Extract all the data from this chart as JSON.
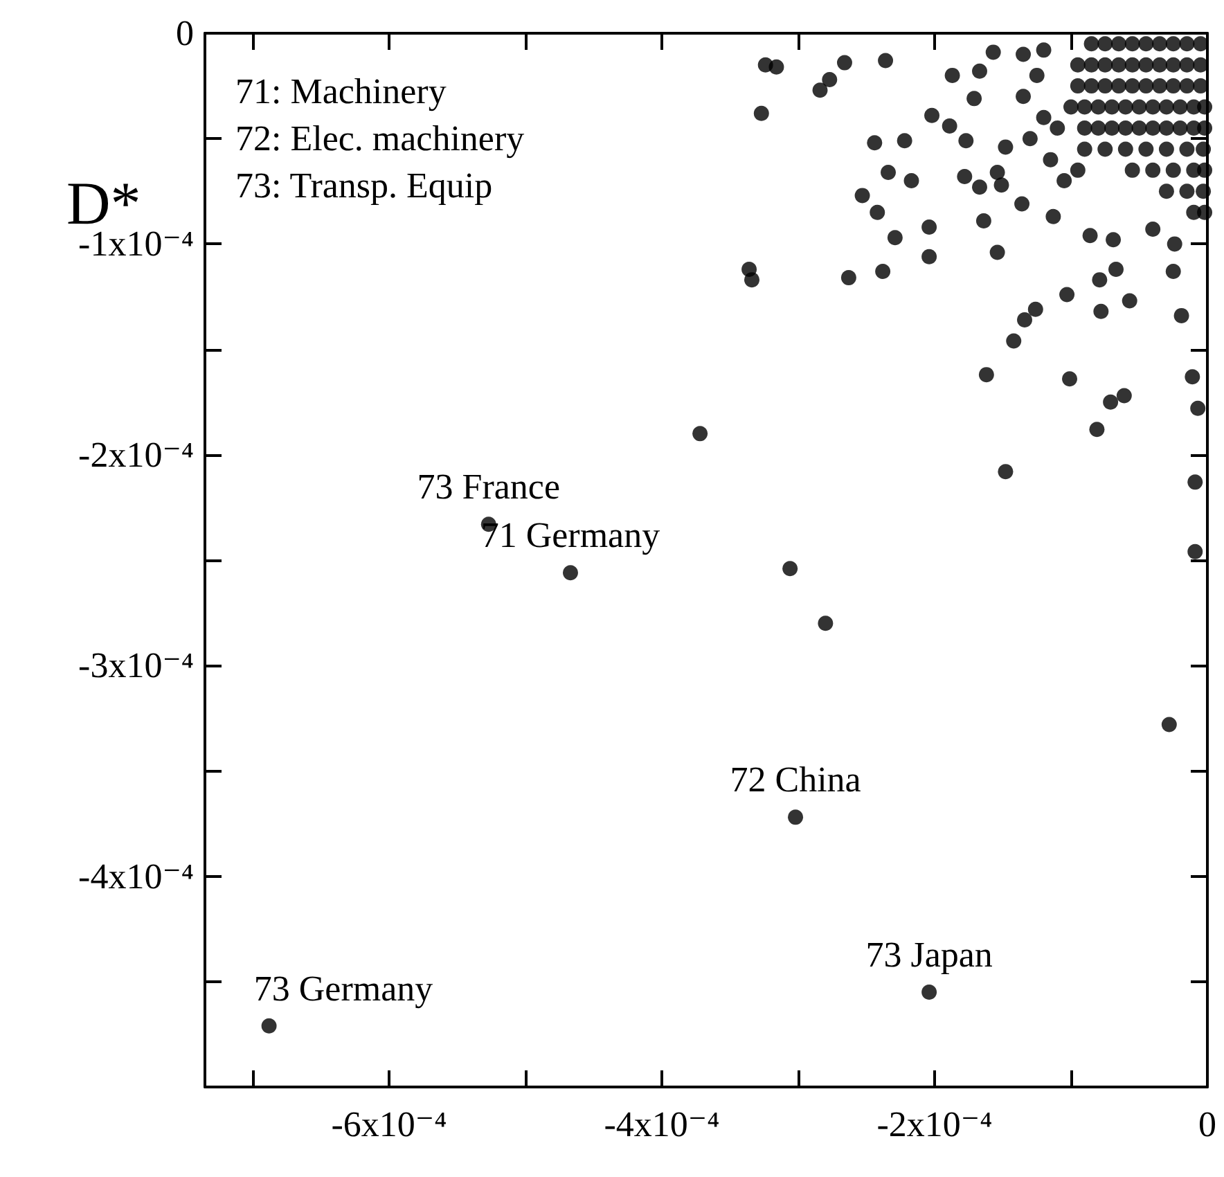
{
  "chart_data": {
    "type": "scatter",
    "ylabel": "D*",
    "marker": "circle",
    "annotations": [
      "71: Machinery",
      "72: Elec. machinery",
      "73: Transp. Equip",
      {
        "text": "73 France",
        "x": -0.000527,
        "y": -0.000233
      },
      {
        "text": "71 Germany",
        "x": -0.000467,
        "y": -0.000256
      },
      {
        "text": "72 China",
        "x": -0.000302,
        "y": -0.000372
      },
      {
        "text": "73 Japan",
        "x": -0.000204,
        "y": -0.000455
      },
      {
        "text": "73 Germany",
        "x": -0.000688,
        "y": -0.000471
      }
    ],
    "xlim": [
      -0.000735,
      0
    ],
    "xticks": [
      {
        "value": -0.0007,
        "label": null
      },
      {
        "value": -0.0006,
        "label": "-6x10⁻⁴"
      },
      {
        "value": -0.0005,
        "label": null
      },
      {
        "value": -0.0004,
        "label": "-4x10⁻⁴"
      },
      {
        "value": -0.0003,
        "label": null
      },
      {
        "value": -0.0002,
        "label": "-2x10⁻⁴"
      },
      {
        "value": -0.0001,
        "label": null
      },
      0
    ],
    "ylim": [
      -0.0005,
      0
    ],
    "yticks": [
      0,
      {
        "value": -5e-05,
        "label": null
      },
      {
        "value": -0.0001,
        "label": "-1x10⁻⁴"
      },
      {
        "value": -0.00015,
        "label": null
      },
      {
        "value": -0.0002,
        "label": "-2x10⁻⁴"
      },
      {
        "value": -0.00025,
        "label": null
      },
      {
        "value": -0.0003,
        "label": "-3x10⁻⁴"
      },
      {
        "value": -0.00035,
        "label": null
      },
      {
        "value": -0.0004,
        "label": "-4x10⁻⁴"
      },
      {
        "value": -0.00045,
        "label": null
      }
    ],
    "series": [
      {
        "color": "#000000",
        "x": [
          -0.000527,
          -0.000467,
          -0.000302,
          -0.000204,
          -0.000688,
          -0.000372,
          -0.000306,
          -0.00028,
          -2.8e-05,
          -0.000148,
          -0.000162,
          -0.000101,
          -0.000336,
          -0.000334,
          -0.000327,
          -0.000324,
          -0.000316,
          -0.000284,
          -0.000277,
          -0.000266,
          -0.000236,
          -0.000263,
          -0.000238,
          -0.000204,
          -0.000204,
          -0.000229,
          -0.000253,
          -0.000242,
          -0.000244,
          -0.000222,
          -0.000234,
          -0.000217,
          -0.000187,
          -0.000167,
          -0.000171,
          -0.000157,
          -0.000202,
          -0.000189,
          -0.000177,
          -0.000178,
          -0.000167,
          -0.000154,
          -0.000151,
          -0.000164,
          -0.000154,
          -0.000148,
          -0.000136,
          -0.000113,
          -8.6e-05,
          -6.9e-05,
          -4e-05,
          -2.4e-05,
          -2.5e-05,
          -6.7e-05,
          -7.9e-05,
          -0.000103,
          -7.8e-05,
          -5.7e-05,
          -0.000126,
          -0.000134,
          -0.000142,
          -6.1e-05,
          -7.1e-05,
          -8.1e-05,
          -1.9e-05,
          -1.1e-05,
          -7e-06,
          -9e-06,
          -9e-06,
          -0.000135,
          -0.000125,
          -0.000135,
          -0.00012,
          -0.00013,
          -0.000115,
          -0.000105,
          -9.5e-05,
          -0.00012,
          -8.5e-05,
          -7.5e-05,
          -6.5e-05,
          -5.5e-05,
          -4.5e-05,
          -3.5e-05,
          -2.5e-05,
          -1.5e-05,
          -5e-06,
          -9.5e-05,
          -8.5e-05,
          -7.5e-05,
          -6.5e-05,
          -5.5e-05,
          -4.5e-05,
          -3.5e-05,
          -2.5e-05,
          -1.5e-05,
          -5e-06,
          -9.5e-05,
          -8.5e-05,
          -7.5e-05,
          -6.5e-05,
          -5.5e-05,
          -4.5e-05,
          -3.5e-05,
          -2.5e-05,
          -1.5e-05,
          -5e-06,
          -0.0001,
          -9e-05,
          -8e-05,
          -7e-05,
          -6e-05,
          -5e-05,
          -4e-05,
          -3e-05,
          -2e-05,
          -1e-05,
          -2e-06,
          -0.00011,
          -9e-05,
          -8e-05,
          -7e-05,
          -6e-05,
          -5e-05,
          -4e-05,
          -3e-05,
          -2e-05,
          -1e-05,
          -2e-06,
          -9e-05,
          -7.5e-05,
          -6e-05,
          -4.5e-05,
          -3e-05,
          -1.5e-05,
          -3e-06,
          -5.5e-05,
          -4e-05,
          -2.5e-05,
          -1e-05,
          -2e-06,
          -3e-05,
          -1.5e-05,
          -3e-06,
          -1e-05,
          -2e-06
        ],
        "values": [
          -0.000233,
          -0.000256,
          -0.000372,
          -0.000455,
          -0.000471,
          -0.00019,
          -0.000254,
          -0.00028,
          -0.000328,
          -0.000208,
          -0.000162,
          -0.000164,
          -0.000112,
          -0.000117,
          -3.8e-05,
          -1.5e-05,
          -1.6e-05,
          -2.7e-05,
          -2.2e-05,
          -1.4e-05,
          -1.3e-05,
          -0.000116,
          -0.000113,
          -9.2e-05,
          -0.000106,
          -9.7e-05,
          -7.7e-05,
          -8.5e-05,
          -5.2e-05,
          -5.1e-05,
          -6.6e-05,
          -7e-05,
          -2e-05,
          -1.8e-05,
          -3.1e-05,
          -9e-06,
          -3.9e-05,
          -4.4e-05,
          -5.1e-05,
          -6.8e-05,
          -7.3e-05,
          -6.6e-05,
          -7.2e-05,
          -8.9e-05,
          -0.000104,
          -5.4e-05,
          -8.1e-05,
          -8.7e-05,
          -9.6e-05,
          -9.8e-05,
          -9.3e-05,
          -0.0001,
          -0.000113,
          -0.000112,
          -0.000117,
          -0.000124,
          -0.000132,
          -0.000127,
          -0.000131,
          -0.000136,
          -0.000146,
          -0.000172,
          -0.000175,
          -0.000188,
          -0.000134,
          -0.000163,
          -0.000178,
          -0.000213,
          -0.000246,
          -1e-05,
          -2e-05,
          -3e-05,
          -4e-05,
          -5e-05,
          -6e-05,
          -7e-05,
          -6.5e-05,
          -8e-06,
          -5e-06,
          -5e-06,
          -5e-06,
          -5e-06,
          -5e-06,
          -5e-06,
          -5e-06,
          -5e-06,
          -5e-06,
          -1.5e-05,
          -1.5e-05,
          -1.5e-05,
          -1.5e-05,
          -1.5e-05,
          -1.5e-05,
          -1.5e-05,
          -1.5e-05,
          -1.5e-05,
          -1.5e-05,
          -2.5e-05,
          -2.5e-05,
          -2.5e-05,
          -2.5e-05,
          -2.5e-05,
          -2.5e-05,
          -2.5e-05,
          -2.5e-05,
          -2.5e-05,
          -2.5e-05,
          -3.5e-05,
          -3.5e-05,
          -3.5e-05,
          -3.5e-05,
          -3.5e-05,
          -3.5e-05,
          -3.5e-05,
          -3.5e-05,
          -3.5e-05,
          -3.5e-05,
          -3.5e-05,
          -4.5e-05,
          -4.5e-05,
          -4.5e-05,
          -4.5e-05,
          -4.5e-05,
          -4.5e-05,
          -4.5e-05,
          -4.5e-05,
          -4.5e-05,
          -4.5e-05,
          -4.5e-05,
          -5.5e-05,
          -5.5e-05,
          -5.5e-05,
          -5.5e-05,
          -5.5e-05,
          -5.5e-05,
          -5.5e-05,
          -6.5e-05,
          -6.5e-05,
          -6.5e-05,
          -6.5e-05,
          -6.5e-05,
          -7.5e-05,
          -7.5e-05,
          -7.5e-05,
          -8.5e-05,
          -8.5e-05
        ]
      }
    ]
  }
}
